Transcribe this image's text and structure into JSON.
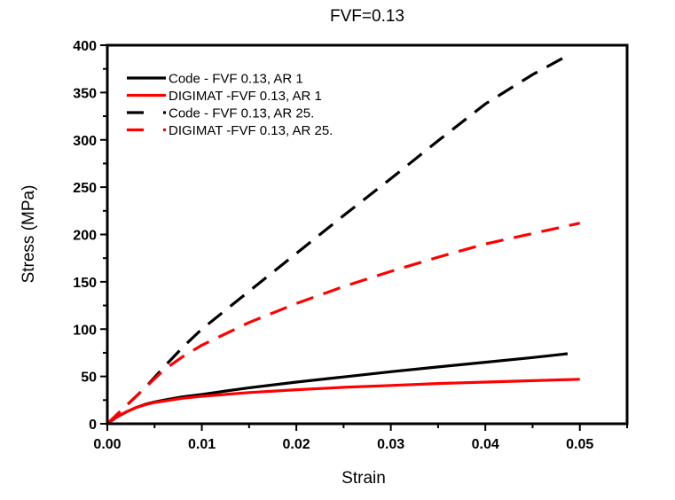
{
  "chart_data": {
    "type": "line",
    "title": "FVF=0.13",
    "xlabel": "Strain",
    "ylabel": "Stress (MPa)",
    "xlim": [
      0,
      0.055
    ],
    "ylim": [
      0,
      400
    ],
    "xticks": [
      0.0,
      0.01,
      0.02,
      0.03,
      0.04,
      0.05
    ],
    "xtick_labels": [
      "0.00",
      "0.01",
      "0.02",
      "0.03",
      "0.04",
      "0.05"
    ],
    "yticks": [
      0,
      50,
      100,
      150,
      200,
      250,
      300,
      350,
      400
    ],
    "ytick_labels": [
      "0",
      "50",
      "100",
      "150",
      "200",
      "250",
      "300",
      "350",
      "400"
    ],
    "grid": false,
    "legend_position": "top-left",
    "series": [
      {
        "name": "Code - FVF 0.13, AR 1",
        "color": "#000000",
        "style": "solid",
        "x": [
          0,
          0.001,
          0.002,
          0.003,
          0.004,
          0.005,
          0.006,
          0.008,
          0.01,
          0.015,
          0.02,
          0.025,
          0.03,
          0.035,
          0.04,
          0.045,
          0.0487
        ],
        "y": [
          0,
          7,
          12.5,
          17,
          20.5,
          23,
          25,
          28.5,
          31,
          38,
          44,
          49.5,
          55,
          60,
          65,
          70,
          74
        ]
      },
      {
        "name": "DIGIMAT -FVF 0.13, AR 1",
        "color": "#ff0000",
        "style": "solid",
        "x": [
          0,
          0.001,
          0.002,
          0.003,
          0.004,
          0.005,
          0.006,
          0.008,
          0.01,
          0.015,
          0.02,
          0.025,
          0.03,
          0.035,
          0.04,
          0.045,
          0.05
        ],
        "y": [
          0,
          7,
          12.5,
          17,
          20,
          22.5,
          24,
          27,
          29,
          33,
          36,
          38.5,
          40.5,
          42.5,
          44,
          45.5,
          47
        ]
      },
      {
        "name": "Code - FVF 0.13, AR 25.",
        "color": "#000000",
        "style": "dashed",
        "x": [
          0,
          0.002,
          0.004,
          0.006,
          0.008,
          0.01,
          0.015,
          0.02,
          0.025,
          0.03,
          0.035,
          0.04,
          0.045,
          0.0487
        ],
        "y": [
          0,
          19,
          38,
          60,
          81,
          100,
          140,
          180,
          220,
          259,
          299,
          338,
          369,
          389
        ]
      },
      {
        "name": "DIGIMAT -FVF 0.13, AR 25.",
        "color": "#ff0000",
        "style": "dashed",
        "x": [
          0,
          0.002,
          0.004,
          0.006,
          0.008,
          0.01,
          0.015,
          0.02,
          0.025,
          0.03,
          0.035,
          0.04,
          0.045,
          0.05
        ],
        "y": [
          0,
          19,
          38,
          57,
          71,
          83,
          107,
          127,
          145,
          161,
          176,
          190,
          201,
          212
        ]
      }
    ]
  }
}
